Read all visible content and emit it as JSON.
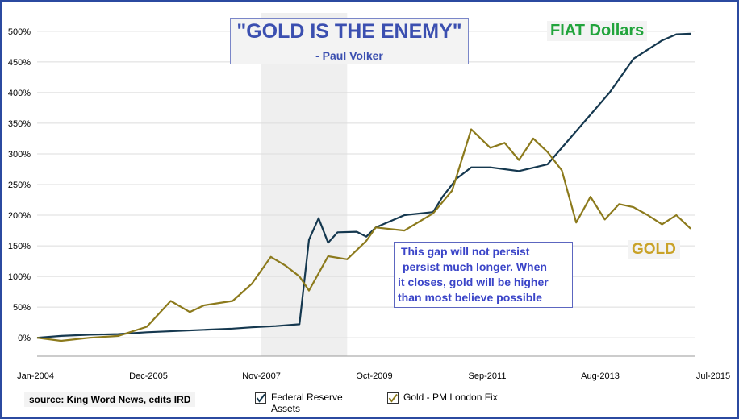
{
  "title": "\"GOLD IS THE ENEMY\"",
  "subtitle": "- Paul Volker",
  "annotation_lines": [
    "This gap will not persist",
    "persist much longer.  When",
    "it closes, gold will be higher",
    "than most believe possible"
  ],
  "fiat_label": "FIAT Dollars",
  "gold_label": "GOLD",
  "source": "source:  King Word News, edits IRD",
  "legend": [
    {
      "name_lines": [
        "Federal Reserve",
        "Assets"
      ],
      "color": "#15384f"
    },
    {
      "name_lines": [
        "Gold - PM London Fix"
      ],
      "color": "#8c7a1c"
    }
  ],
  "colors": {
    "frame": "#2b4aa0",
    "fed": "#15384f",
    "gold": "#8c7a1c",
    "shade": "#efefef"
  },
  "chart_data": {
    "type": "line",
    "x_ticks": [
      "Jan-2004",
      "Dec-2005",
      "Nov-2007",
      "Oct-2009",
      "Sep-2011",
      "Aug-2013",
      "Jul-2015"
    ],
    "y_ticks": [
      "0%",
      "50%",
      "100%",
      "150%",
      "200%",
      "250%",
      "300%",
      "350%",
      "400%",
      "450%",
      "500%"
    ],
    "ylim": [
      -30,
      530
    ],
    "xlim": [
      "2004-01",
      "2015-07"
    ],
    "grid": true,
    "shaded_region": [
      "2007-12",
      "2009-06"
    ],
    "series": [
      {
        "name": "Federal Reserve Assets",
        "points": [
          [
            "2004-01",
            0
          ],
          [
            "2004-06",
            3
          ],
          [
            "2004-12",
            5
          ],
          [
            "2005-06",
            6
          ],
          [
            "2005-12",
            9
          ],
          [
            "2006-06",
            11
          ],
          [
            "2006-12",
            13
          ],
          [
            "2007-06",
            15
          ],
          [
            "2007-10",
            17
          ],
          [
            "2008-03",
            19
          ],
          [
            "2008-08",
            22
          ],
          [
            "2008-10",
            160
          ],
          [
            "2008-12",
            195
          ],
          [
            "2009-02",
            155
          ],
          [
            "2009-04",
            172
          ],
          [
            "2009-08",
            173
          ],
          [
            "2009-10",
            165
          ],
          [
            "2009-12",
            180
          ],
          [
            "2010-06",
            200
          ],
          [
            "2010-12",
            205
          ],
          [
            "2011-02",
            230
          ],
          [
            "2011-05",
            260
          ],
          [
            "2011-08",
            278
          ],
          [
            "2011-12",
            278
          ],
          [
            "2012-06",
            272
          ],
          [
            "2012-12",
            283
          ],
          [
            "2013-03",
            310
          ],
          [
            "2013-08",
            355
          ],
          [
            "2014-01",
            400
          ],
          [
            "2014-06",
            455
          ],
          [
            "2014-12",
            485
          ],
          [
            "2015-03",
            495
          ],
          [
            "2015-06",
            496
          ]
        ]
      },
      {
        "name": "Gold - PM London Fix",
        "points": [
          [
            "2004-01",
            0
          ],
          [
            "2004-06",
            -5
          ],
          [
            "2004-12",
            0
          ],
          [
            "2005-06",
            3
          ],
          [
            "2005-12",
            18
          ],
          [
            "2006-05",
            60
          ],
          [
            "2006-09",
            42
          ],
          [
            "2006-12",
            53
          ],
          [
            "2007-06",
            60
          ],
          [
            "2007-10",
            88
          ],
          [
            "2008-02",
            132
          ],
          [
            "2008-05",
            118
          ],
          [
            "2008-08",
            100
          ],
          [
            "2008-10",
            77
          ],
          [
            "2009-02",
            133
          ],
          [
            "2009-06",
            128
          ],
          [
            "2009-10",
            158
          ],
          [
            "2009-12",
            180
          ],
          [
            "2010-06",
            175
          ],
          [
            "2010-12",
            203
          ],
          [
            "2011-04",
            240
          ],
          [
            "2011-08",
            340
          ],
          [
            "2011-12",
            310
          ],
          [
            "2012-03",
            318
          ],
          [
            "2012-06",
            290
          ],
          [
            "2012-09",
            325
          ],
          [
            "2012-12",
            303
          ],
          [
            "2013-03",
            273
          ],
          [
            "2013-06",
            188
          ],
          [
            "2013-09",
            230
          ],
          [
            "2013-12",
            193
          ],
          [
            "2014-03",
            218
          ],
          [
            "2014-06",
            213
          ],
          [
            "2014-09",
            200
          ],
          [
            "2014-12",
            185
          ],
          [
            "2015-03",
            200
          ],
          [
            "2015-06",
            178
          ]
        ]
      }
    ]
  }
}
